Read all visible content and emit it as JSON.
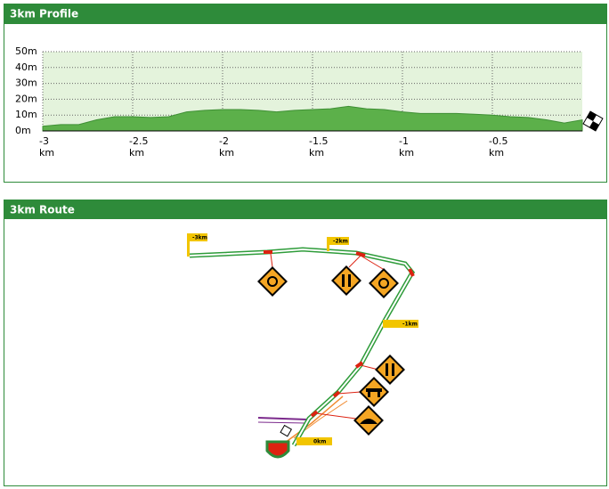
{
  "profile_panel": {
    "title": "3km Profile"
  },
  "chart_data": {
    "type": "area",
    "x": [
      -3,
      -2.9,
      -2.8,
      -2.7,
      -2.6,
      -2.5,
      -2.4,
      -2.3,
      -2.2,
      -2.1,
      -2,
      -1.9,
      -1.8,
      -1.7,
      -1.6,
      -1.5,
      -1.4,
      -1.3,
      -1.2,
      -1.1,
      -1,
      -0.9,
      -0.8,
      -0.7,
      -0.6,
      -0.5,
      -0.4,
      -0.3,
      -0.2,
      -0.1,
      0
    ],
    "values": [
      3,
      4,
      4,
      7,
      9,
      9,
      8.5,
      9,
      12,
      13,
      13.5,
      13.5,
      13,
      12,
      13,
      13.5,
      14,
      15.5,
      14,
      13.5,
      12,
      11,
      11,
      11,
      10.5,
      10,
      9,
      8.5,
      7,
      5,
      7
    ],
    "color": "#5cb04a",
    "xlim": [
      -3,
      0
    ],
    "xticks": [
      {
        "value": -3,
        "label": "-3 km"
      },
      {
        "value": -2.5,
        "label": "-2.5 km"
      },
      {
        "value": -2,
        "label": "-2 km"
      },
      {
        "value": -1.5,
        "label": "-1.5 km"
      },
      {
        "value": -1,
        "label": "-1 km"
      },
      {
        "value": -0.5,
        "label": "-0.5 km"
      }
    ],
    "ylim": [
      0,
      50
    ],
    "yticks": [
      {
        "value": 0,
        "label": "0m"
      },
      {
        "value": 10,
        "label": "10m"
      },
      {
        "value": 20,
        "label": "20m"
      },
      {
        "value": 30,
        "label": "30m"
      },
      {
        "value": 40,
        "label": "40m"
      },
      {
        "value": 50,
        "label": "50m"
      }
    ],
    "grid": true
  },
  "route_panel": {
    "title": "3km Route",
    "markers": [
      "-3km",
      "-2km",
      "-1km",
      "0km"
    ]
  }
}
